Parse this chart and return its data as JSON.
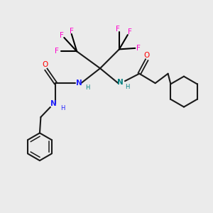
{
  "bg_color": "#ebebeb",
  "bond_color": "#1a1a1a",
  "N_color": "#2020ff",
  "NH_color": "#008080",
  "O_color": "#ff0000",
  "F_color": "#ff00cc",
  "figsize": [
    3.0,
    3.0
  ],
  "dpi": 100,
  "xlim": [
    0,
    10
  ],
  "ylim": [
    0,
    10
  ]
}
